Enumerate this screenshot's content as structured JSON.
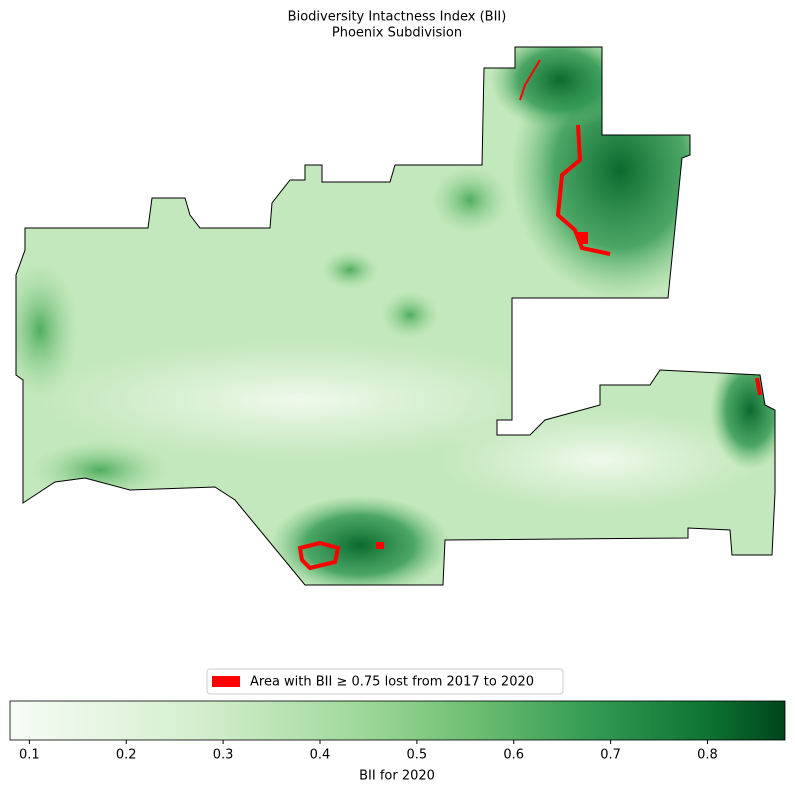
{
  "title": "Biodiversity Intactness Index (BII)",
  "subtitle": "Phoenix Subdivision",
  "legend": {
    "label": "Area with BII ≥ 0.75 lost from 2017 to 2020",
    "color": "#ff0000"
  },
  "colorbar": {
    "label": "BII for 2020",
    "lim": [
      0.08,
      0.88
    ],
    "ticks": [
      0.1,
      0.2,
      0.3,
      0.4,
      0.5,
      0.6,
      0.7,
      0.8
    ]
  }
}
